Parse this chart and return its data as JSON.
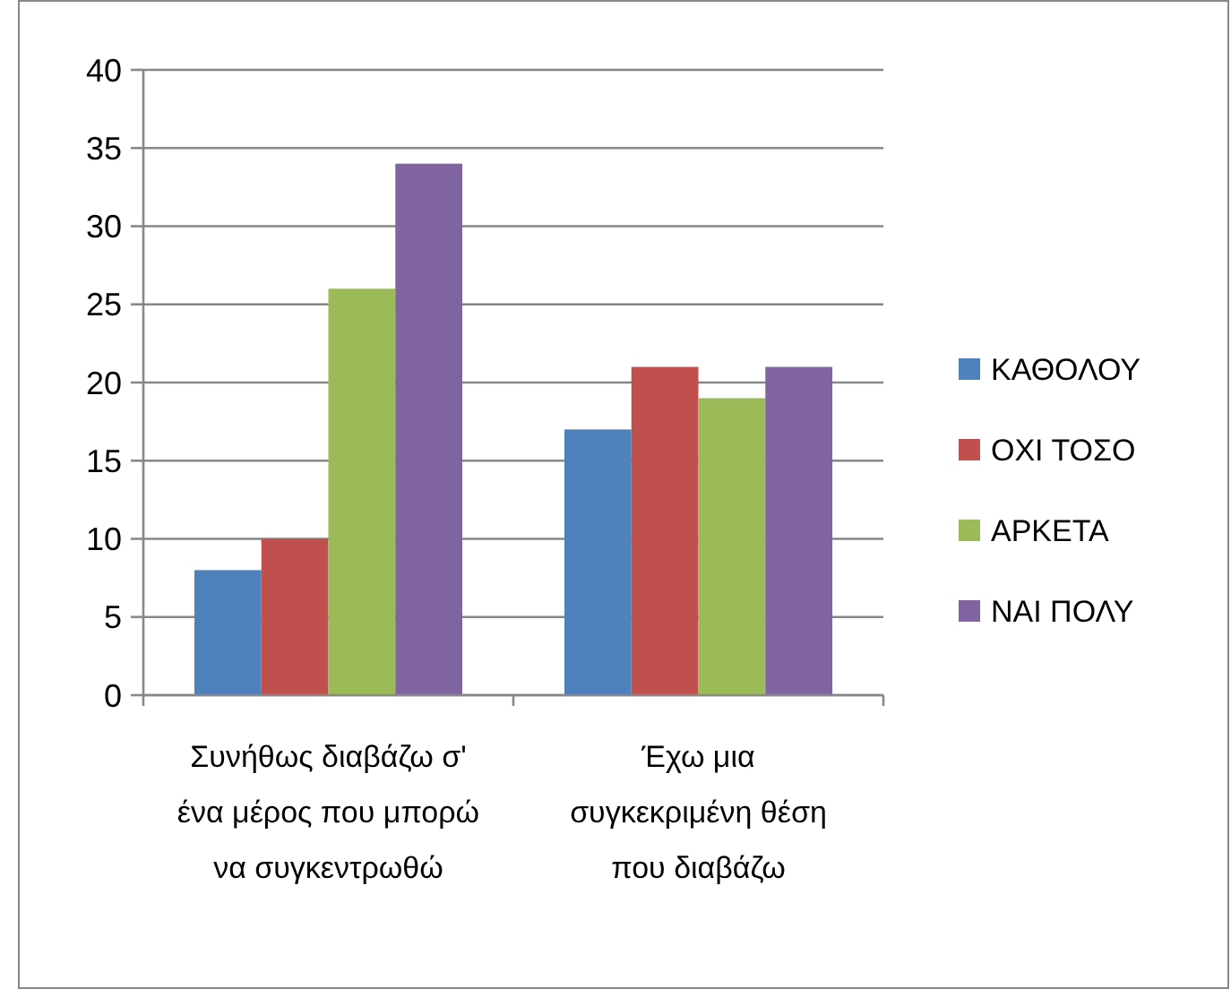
{
  "chart_data": {
    "type": "bar",
    "categories": [
      "Συνήθως διαβάζω σ' ένα μέρος που μπορώ να συγκεντρωθώ",
      "Έχω μια συγκεκριμένη θέση που διαβάζω"
    ],
    "series": [
      {
        "name": "ΚΑΘΟΛΟΥ",
        "color": "#4f81bd",
        "values": [
          8,
          17
        ]
      },
      {
        "name": "ΟΧΙ ΤΟΣΟ",
        "color": "#c0504d",
        "values": [
          10,
          21
        ]
      },
      {
        "name": "ΑΡΚΕΤΑ",
        "color": "#9bbb59",
        "values": [
          26,
          19
        ]
      },
      {
        "name": "ΝΑΙ ΠΟΛΥ",
        "color": "#8064a2",
        "values": [
          34,
          21
        ]
      }
    ],
    "ylim": [
      0,
      40
    ],
    "yticks": [
      0,
      5,
      10,
      15,
      20,
      25,
      30,
      35,
      40
    ],
    "grid": "y",
    "legend": "right"
  }
}
